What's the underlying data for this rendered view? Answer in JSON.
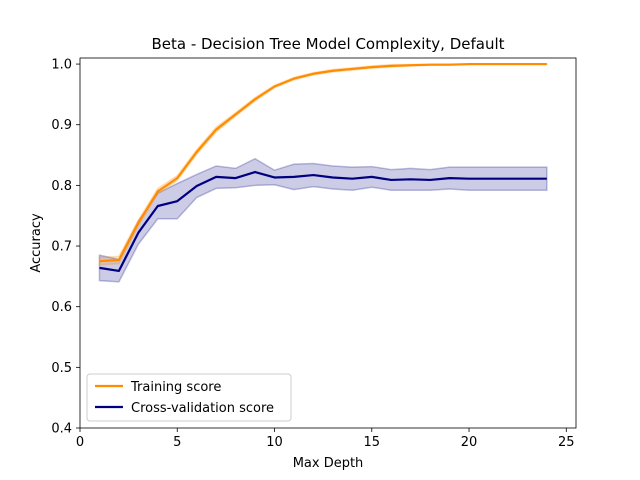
{
  "chart_data": {
    "type": "line",
    "title": "Beta - Decision Tree Model Complexity, Default",
    "xlabel": "Max Depth",
    "ylabel": "Accuracy",
    "xlim": [
      0,
      25.5
    ],
    "ylim": [
      0.4,
      1.01
    ],
    "xticks": [
      0,
      5,
      10,
      15,
      20,
      25
    ],
    "yticks": [
      0.4,
      0.5,
      0.6,
      0.7,
      0.8,
      0.9,
      1.0
    ],
    "ytick_labels": [
      "0.4",
      "0.5",
      "0.6",
      "0.7",
      "0.8",
      "0.9",
      "1.0"
    ],
    "grid": false,
    "legend": "lower-left",
    "x": [
      1,
      2,
      3,
      4,
      5,
      6,
      7,
      8,
      9,
      10,
      11,
      12,
      13,
      14,
      15,
      16,
      17,
      18,
      19,
      20,
      21,
      22,
      23,
      24
    ],
    "series": [
      {
        "name": "Training score",
        "color": "#ff8c00",
        "values": [
          0.675,
          0.677,
          0.738,
          0.79,
          0.812,
          0.855,
          0.892,
          0.917,
          0.942,
          0.963,
          0.976,
          0.984,
          0.989,
          0.992,
          0.995,
          0.997,
          0.998,
          0.999,
          0.999,
          1.0,
          1.0,
          1.0,
          1.0,
          1.0
        ],
        "lower": [
          0.669,
          0.671,
          0.733,
          0.786,
          0.808,
          0.851,
          0.888,
          0.914,
          0.939,
          0.961,
          0.974,
          0.982,
          0.987,
          0.99,
          0.993,
          0.995,
          0.997,
          0.998,
          0.998,
          0.999,
          0.999,
          0.999,
          0.999,
          0.999
        ],
        "upper": [
          0.681,
          0.683,
          0.743,
          0.795,
          0.816,
          0.859,
          0.896,
          0.92,
          0.945,
          0.965,
          0.978,
          0.986,
          0.991,
          0.994,
          0.997,
          0.999,
          0.999,
          1.0,
          1.0,
          1.0,
          1.0,
          1.0,
          1.0,
          1.0
        ]
      },
      {
        "name": "Cross-validation score",
        "color": "#000080",
        "values": [
          0.664,
          0.659,
          0.722,
          0.766,
          0.774,
          0.799,
          0.814,
          0.812,
          0.822,
          0.813,
          0.814,
          0.817,
          0.813,
          0.811,
          0.814,
          0.809,
          0.81,
          0.809,
          0.812,
          0.811,
          0.811,
          0.811,
          0.811,
          0.811
        ],
        "lower": [
          0.643,
          0.641,
          0.703,
          0.745,
          0.745,
          0.78,
          0.795,
          0.796,
          0.8,
          0.801,
          0.793,
          0.798,
          0.794,
          0.792,
          0.797,
          0.792,
          0.792,
          0.792,
          0.794,
          0.792,
          0.792,
          0.792,
          0.792,
          0.792
        ],
        "upper": [
          0.685,
          0.678,
          0.741,
          0.787,
          0.803,
          0.818,
          0.832,
          0.828,
          0.844,
          0.825,
          0.835,
          0.836,
          0.832,
          0.83,
          0.831,
          0.826,
          0.828,
          0.826,
          0.83,
          0.83,
          0.83,
          0.83,
          0.83,
          0.83
        ]
      }
    ]
  }
}
